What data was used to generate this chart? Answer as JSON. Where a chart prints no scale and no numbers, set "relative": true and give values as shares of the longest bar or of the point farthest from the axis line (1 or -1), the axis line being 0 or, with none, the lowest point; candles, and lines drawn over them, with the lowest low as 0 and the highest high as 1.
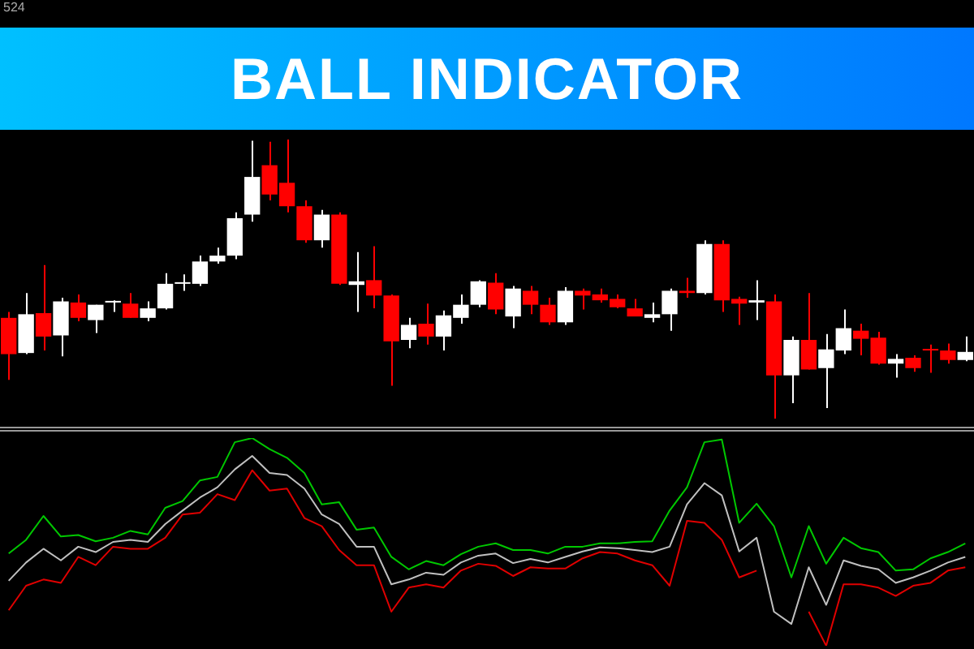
{
  "chart_data": [
    {
      "type": "candlestick",
      "title": "BALL INDICATOR",
      "annotations": [
        "524"
      ],
      "relative": true,
      "categories": [
        null,
        null,
        null,
        null,
        null,
        null,
        null,
        null,
        null,
        null,
        null,
        null,
        null,
        null,
        null,
        null,
        null,
        null,
        null,
        null,
        null,
        null,
        null,
        null,
        null,
        null,
        null,
        null,
        null,
        null,
        null,
        null,
        null,
        null,
        null,
        null,
        null,
        null,
        null,
        null,
        null,
        null,
        null,
        null,
        null,
        null,
        null,
        null,
        null,
        null,
        null,
        null,
        null,
        null,
        null,
        null
      ],
      "ohlc": [
        [
          0.361,
          0.382,
          0.139,
          0.231
        ],
        [
          0.235,
          0.45,
          0.231,
          0.374
        ],
        [
          0.378,
          0.55,
          0.244,
          0.294
        ],
        [
          0.298,
          0.433,
          0.223,
          0.42
        ],
        [
          0.416,
          0.445,
          0.349,
          0.361
        ],
        [
          0.353,
          0.408,
          0.307,
          0.408
        ],
        [
          0.416,
          0.424,
          0.382,
          0.42
        ],
        [
          0.412,
          0.45,
          0.361,
          0.361
        ],
        [
          0.361,
          0.42,
          0.349,
          0.395
        ],
        [
          0.395,
          0.521,
          0.391,
          0.483
        ],
        [
          0.483,
          0.517,
          0.458,
          0.487
        ],
        [
          0.483,
          0.584,
          0.475,
          0.563
        ],
        [
          0.563,
          0.613,
          0.555,
          0.584
        ],
        [
          0.584,
          0.739,
          0.571,
          0.718
        ],
        [
          0.731,
          0.996,
          0.706,
          0.866
        ],
        [
          0.908,
          0.992,
          0.782,
          0.803
        ],
        [
          0.845,
          1,
          0.739,
          0.761
        ],
        [
          0.761,
          0.782,
          0.63,
          0.639
        ],
        [
          0.639,
          0.748,
          0.613,
          0.731
        ],
        [
          0.731,
          0.739,
          0.479,
          0.483
        ],
        [
          0.479,
          0.597,
          0.382,
          0.492
        ],
        [
          0.496,
          0.618,
          0.395,
          0.441
        ],
        [
          0.441,
          0.445,
          0.118,
          0.277
        ],
        [
          0.282,
          0.361,
          0.252,
          0.336
        ],
        [
          0.34,
          0.412,
          0.265,
          0.294
        ],
        [
          0.294,
          0.387,
          0.244,
          0.37
        ],
        [
          0.361,
          0.445,
          0.34,
          0.408
        ],
        [
          0.408,
          0.496,
          0.399,
          0.492
        ],
        [
          0.487,
          0.521,
          0.374,
          0.391
        ],
        [
          0.366,
          0.475,
          0.324,
          0.466
        ],
        [
          0.458,
          0.475,
          0.374,
          0.408
        ],
        [
          0.408,
          0.433,
          0.336,
          0.345
        ],
        [
          0.345,
          0.471,
          0.336,
          0.458
        ],
        [
          0.458,
          0.466,
          0.391,
          0.441
        ],
        [
          0.445,
          0.466,
          0.416,
          0.424
        ],
        [
          0.429,
          0.445,
          0.395,
          0.399
        ],
        [
          0.395,
          0.429,
          0.366,
          0.366
        ],
        [
          0.361,
          0.416,
          0.345,
          0.374
        ],
        [
          0.374,
          0.466,
          0.315,
          0.458
        ],
        [
          0.458,
          0.504,
          0.433,
          0.45
        ],
        [
          0.45,
          0.639,
          0.445,
          0.626
        ],
        [
          0.626,
          0.639,
          0.382,
          0.424
        ],
        [
          0.429,
          0.437,
          0.336,
          0.412
        ],
        [
          0.416,
          0.496,
          0.353,
          0.424
        ],
        [
          0.42,
          0.445,
          0,
          0.155
        ],
        [
          0.155,
          0.294,
          0.055,
          0.282
        ],
        [
          0.282,
          0.45,
          0.176,
          0.176
        ],
        [
          0.181,
          0.303,
          0.038,
          0.248
        ],
        [
          0.244,
          0.391,
          0.231,
          0.324
        ],
        [
          0.315,
          0.34,
          0.227,
          0.286
        ],
        [
          0.29,
          0.311,
          0.193,
          0.197
        ],
        [
          0.197,
          0.231,
          0.147,
          0.214
        ],
        [
          0.218,
          0.227,
          0.168,
          0.181
        ],
        [
          0.248,
          0.265,
          0.164,
          0.244
        ],
        [
          0.244,
          0.269,
          0.197,
          0.21
        ],
        [
          0.21,
          0.294,
          0.206,
          0.239
        ]
      ],
      "colors": [
        "#ff0000",
        "#ffffff",
        "#ff0000",
        "#ffffff",
        "#ff0000",
        "#ffffff",
        "#ffffff",
        "#ff0000",
        "#ffffff",
        "#ffffff",
        "#ffffff",
        "#ffffff",
        "#ffffff",
        "#ffffff",
        "#ffffff",
        "#ff0000",
        "#ff0000",
        "#ff0000",
        "#ffffff",
        "#ff0000",
        "#ffffff",
        "#ff0000",
        "#ff0000",
        "#ffffff",
        "#ff0000",
        "#ffffff",
        "#ffffff",
        "#ffffff",
        "#ff0000",
        "#ffffff",
        "#ff0000",
        "#ff0000",
        "#ffffff",
        "#ff0000",
        "#ff0000",
        "#ff0000",
        "#ff0000",
        "#ffffff",
        "#ffffff",
        "#ff0000",
        "#ffffff",
        "#ff0000",
        "#ff0000",
        "#ffffff",
        "#ff0000",
        "#ffffff",
        "#ff0000",
        "#ffffff",
        "#ffffff",
        "#ff0000",
        "#ff0000",
        "#ffffff",
        "#ff0000",
        "#ff0000",
        "#ff0000",
        "#ffffff"
      ]
    },
    {
      "type": "line",
      "relative": true,
      "categories": [
        null,
        null,
        null,
        null,
        null,
        null,
        null,
        null,
        null,
        null,
        null,
        null,
        null,
        null,
        null,
        null,
        null,
        null,
        null,
        null,
        null,
        null,
        null,
        null,
        null,
        null,
        null,
        null,
        null,
        null,
        null,
        null,
        null,
        null,
        null,
        null,
        null,
        null,
        null,
        null,
        null,
        null,
        null,
        null,
        null,
        null,
        null,
        null,
        null,
        null,
        null,
        null,
        null,
        null,
        null,
        null
      ],
      "series": [
        {
          "color": "#00c800",
          "values": [
            0.444,
            0.51,
            0.625,
            0.526,
            0.533,
            0.503,
            0.52,
            0.553,
            0.536,
            0.664,
            0.697,
            0.796,
            0.813,
            0.98,
            1,
            0.947,
            0.905,
            0.832,
            0.681,
            0.691,
            0.559,
            0.569,
            0.428,
            0.368,
            0.408,
            0.388,
            0.441,
            0.477,
            0.493,
            0.461,
            0.461,
            0.444,
            0.477,
            0.477,
            0.493,
            0.493,
            0.5,
            0.503,
            0.651,
            0.763,
            0.98,
            0.993,
            0.592,
            0.684,
            0.576,
            0.329,
            0.576,
            0.395,
            0.52,
            0.47,
            0.451,
            0.362,
            0.368,
            0.421,
            0.451,
            0.493
          ]
        },
        {
          "color": "#c0c0c0",
          "values": [
            0.313,
            0.401,
            0.467,
            0.411,
            0.477,
            0.451,
            0.5,
            0.51,
            0.5,
            0.586,
            0.651,
            0.714,
            0.763,
            0.849,
            0.914,
            0.832,
            0.822,
            0.757,
            0.632,
            0.586,
            0.477,
            0.477,
            0.296,
            0.319,
            0.352,
            0.342,
            0.401,
            0.434,
            0.444,
            0.398,
            0.418,
            0.401,
            0.428,
            0.454,
            0.474,
            0.47,
            0.461,
            0.451,
            0.477,
            0.681,
            0.783,
            0.724,
            0.454,
            0.52,
            0.164,
            0.105,
            0.378,
            0.197,
            0.411,
            0.385,
            0.368,
            0.303,
            0.329,
            0.362,
            0.401,
            0.428
          ]
        },
        {
          "color": "#e00000",
          "values": [
            0.171,
            0.289,
            0.319,
            0.303,
            0.428,
            0.388,
            0.477,
            0.467,
            0.467,
            0.52,
            0.632,
            0.641,
            0.73,
            0.701,
            0.845,
            0.747,
            0.757,
            0.615,
            0.576,
            0.461,
            0.388,
            0.388,
            0.164,
            0.28,
            0.296,
            0.28,
            0.362,
            0.395,
            0.385,
            0.336,
            0.378,
            0.372,
            0.372,
            0.421,
            0.451,
            0.444,
            0.411,
            0.388,
            0.289,
            0.602,
            0.592,
            0.51,
            0.329,
            0.362,
            null,
            null,
            0.164,
            0,
            0.296,
            0.296,
            0.28,
            0.24,
            0.289,
            0.303,
            0.362,
            0.378
          ]
        }
      ]
    }
  ]
}
